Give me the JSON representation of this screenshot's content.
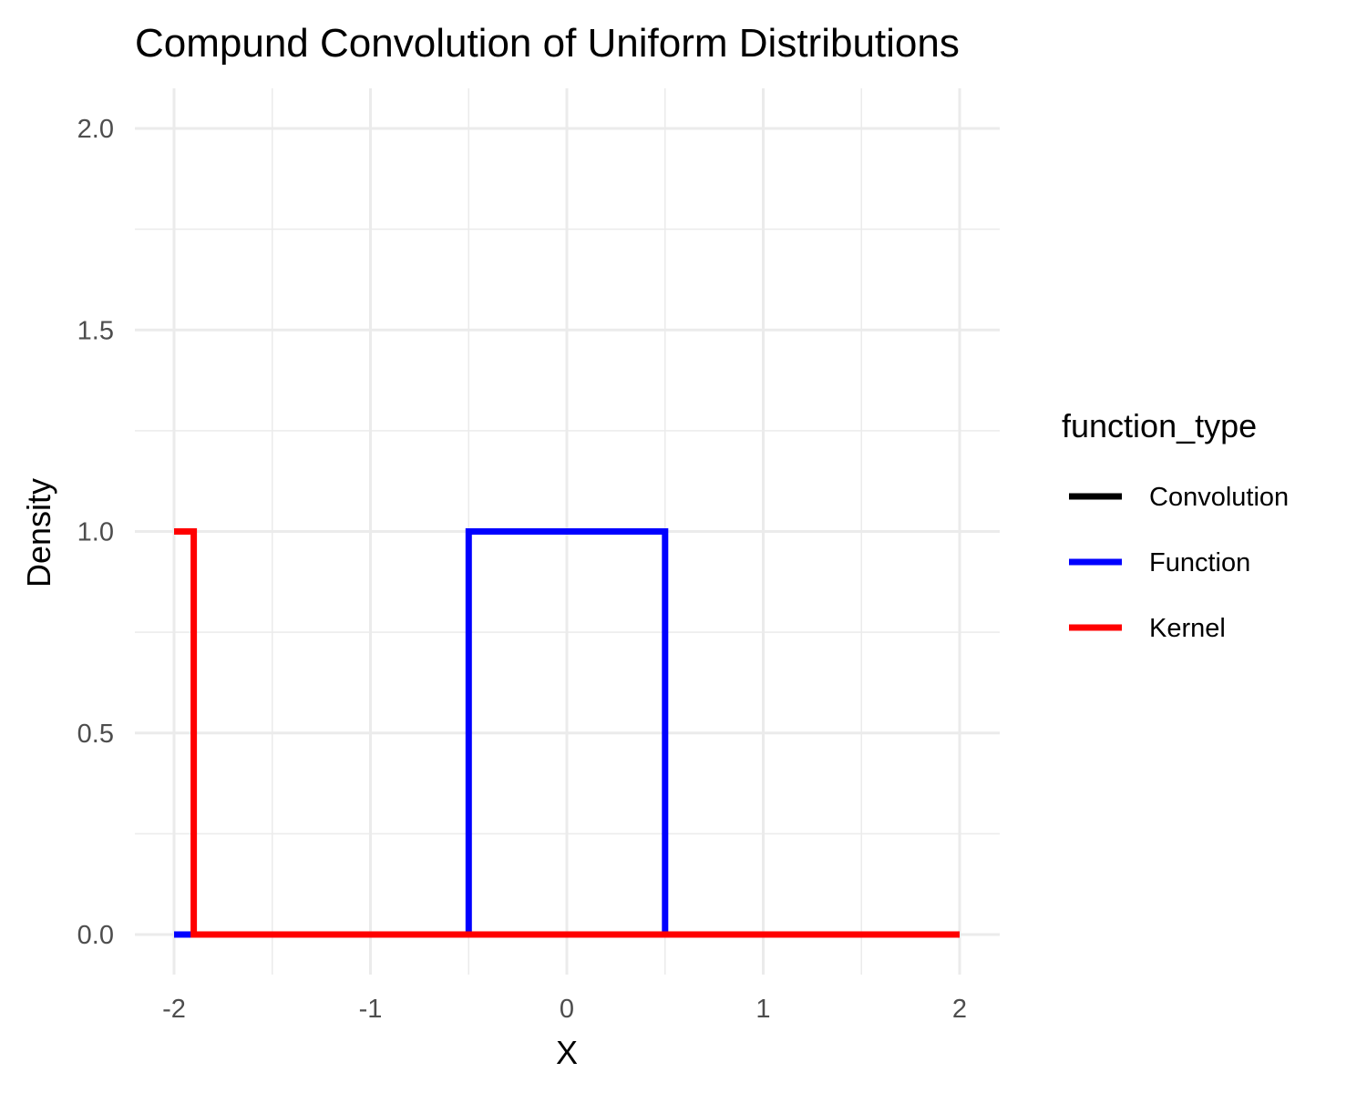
{
  "chart_data": {
    "type": "line",
    "title": "Compund Convolution of Uniform Distributions",
    "xlabel": "X",
    "ylabel": "Density",
    "xlim": [
      -2,
      2
    ],
    "ylim": [
      0,
      2
    ],
    "x_ticks": [
      -2,
      -1,
      0,
      1,
      2
    ],
    "x_tick_labels": [
      "-2",
      "-1",
      "0",
      "1",
      "2"
    ],
    "y_ticks": [
      0,
      0.5,
      1,
      1.5,
      2
    ],
    "y_tick_labels": [
      "0.0",
      "0.5",
      "1.0",
      "1.5",
      "2.0"
    ],
    "grid": true,
    "legend": {
      "title": "function_type",
      "position": "right"
    },
    "series": [
      {
        "name": "Convolution",
        "color": "#000000",
        "points": []
      },
      {
        "name": "Function",
        "color": "#0000ff",
        "points": [
          [
            -2,
            0
          ],
          [
            -0.5,
            0
          ],
          [
            -0.5,
            1
          ],
          [
            0.5,
            1
          ],
          [
            0.5,
            0
          ],
          [
            2,
            0
          ]
        ]
      },
      {
        "name": "Kernel",
        "color": "#ff0000",
        "points": [
          [
            -2,
            1
          ],
          [
            -1.9,
            1
          ],
          [
            -1.9,
            0
          ],
          [
            2,
            0
          ]
        ]
      }
    ]
  }
}
